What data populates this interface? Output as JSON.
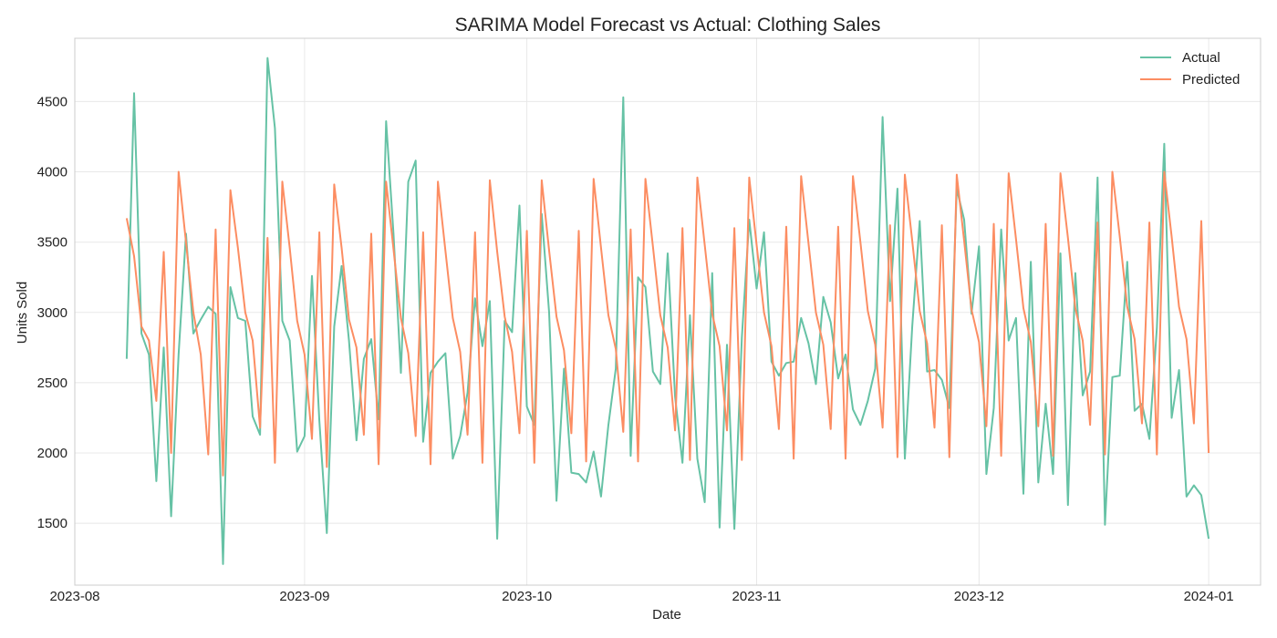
{
  "chart_data": {
    "type": "line",
    "title": "SARIMA Model Forecast vs Actual: Clothing Sales",
    "xlabel": "Date",
    "ylabel": "Units Sold",
    "x_type": "date",
    "xlim": [
      "2023-08-01",
      "2024-01-08"
    ],
    "ylim": [
      1060,
      4950
    ],
    "x_ticks": [
      "2023-08-01",
      "2023-09-01",
      "2023-10-01",
      "2023-11-01",
      "2023-12-01",
      "2024-01-01"
    ],
    "x_tick_labels": [
      "2023-08",
      "2023-09",
      "2023-10",
      "2023-11",
      "2023-12",
      "2024-01"
    ],
    "y_ticks": [
      1500,
      2000,
      2500,
      3000,
      3500,
      4000,
      4500
    ],
    "y_tick_labels": [
      "1500",
      "2000",
      "2500",
      "3000",
      "3500",
      "4000",
      "4500"
    ],
    "grid": true,
    "legend_position": "top-right",
    "x": [
      "2023-08-08",
      "2023-08-09",
      "2023-08-10",
      "2023-08-11",
      "2023-08-12",
      "2023-08-13",
      "2023-08-14",
      "2023-08-15",
      "2023-08-16",
      "2023-08-17",
      "2023-08-18",
      "2023-08-19",
      "2023-08-20",
      "2023-08-21",
      "2023-08-22",
      "2023-08-23",
      "2023-08-24",
      "2023-08-25",
      "2023-08-26",
      "2023-08-27",
      "2023-08-28",
      "2023-08-29",
      "2023-08-30",
      "2023-08-31",
      "2023-09-01",
      "2023-09-02",
      "2023-09-03",
      "2023-09-04",
      "2023-09-05",
      "2023-09-06",
      "2023-09-07",
      "2023-09-08",
      "2023-09-09",
      "2023-09-10",
      "2023-09-11",
      "2023-09-12",
      "2023-09-13",
      "2023-09-14",
      "2023-09-15",
      "2023-09-16",
      "2023-09-17",
      "2023-09-18",
      "2023-09-19",
      "2023-09-20",
      "2023-09-21",
      "2023-09-22",
      "2023-09-23",
      "2023-09-24",
      "2023-09-25",
      "2023-09-26",
      "2023-09-27",
      "2023-09-28",
      "2023-09-29",
      "2023-09-30",
      "2023-10-01",
      "2023-10-02",
      "2023-10-03",
      "2023-10-04",
      "2023-10-05",
      "2023-10-06",
      "2023-10-07",
      "2023-10-08",
      "2023-10-09",
      "2023-10-10",
      "2023-10-11",
      "2023-10-12",
      "2023-10-13",
      "2023-10-14",
      "2023-10-15",
      "2023-10-16",
      "2023-10-17",
      "2023-10-18",
      "2023-10-19",
      "2023-10-20",
      "2023-10-21",
      "2023-10-22",
      "2023-10-23",
      "2023-10-24",
      "2023-10-25",
      "2023-10-26",
      "2023-10-27",
      "2023-10-28",
      "2023-10-29",
      "2023-10-30",
      "2023-10-31",
      "2023-11-01",
      "2023-11-02",
      "2023-11-03",
      "2023-11-04",
      "2023-11-05",
      "2023-11-06",
      "2023-11-07",
      "2023-11-08",
      "2023-11-09",
      "2023-11-10",
      "2023-11-11",
      "2023-11-12",
      "2023-11-13",
      "2023-11-14",
      "2023-11-15",
      "2023-11-16",
      "2023-11-17",
      "2023-11-18",
      "2023-11-19",
      "2023-11-20",
      "2023-11-21",
      "2023-11-22",
      "2023-11-23",
      "2023-11-24",
      "2023-11-25",
      "2023-11-26",
      "2023-11-27",
      "2023-11-28",
      "2023-11-29",
      "2023-11-30",
      "2023-12-01",
      "2023-12-02",
      "2023-12-03",
      "2023-12-04",
      "2023-12-05",
      "2023-12-06",
      "2023-12-07",
      "2023-12-08",
      "2023-12-09",
      "2023-12-10",
      "2023-12-11",
      "2023-12-12",
      "2023-12-13",
      "2023-12-14",
      "2023-12-15",
      "2023-12-16",
      "2023-12-17",
      "2023-12-18",
      "2023-12-19",
      "2023-12-20",
      "2023-12-21",
      "2023-12-22",
      "2023-12-23",
      "2023-12-24",
      "2023-12-25",
      "2023-12-26",
      "2023-12-27",
      "2023-12-28",
      "2023-12-29",
      "2023-12-30",
      "2023-12-31",
      "2024-01-01"
    ],
    "series": [
      {
        "name": "Actual",
        "color": "#66c2a5",
        "values": [
          2670,
          4560,
          2850,
          2700,
          1800,
          2750,
          1550,
          2700,
          3560,
          2850,
          2950,
          3040,
          2990,
          1210,
          3180,
          2960,
          2940,
          2260,
          2130,
          4810,
          4310,
          2940,
          2800,
          2010,
          2120,
          3260,
          2230,
          1430,
          2900,
          3330,
          2800,
          2090,
          2670,
          2810,
          2240,
          4360,
          3560,
          2570,
          3930,
          4080,
          2080,
          2570,
          2650,
          2710,
          1960,
          2120,
          2430,
          3100,
          2760,
          3080,
          1390,
          2940,
          2860,
          3760,
          2330,
          2200,
          3700,
          3000,
          1660,
          2600,
          1860,
          1850,
          1790,
          2010,
          1690,
          2200,
          2600,
          4530,
          1980,
          3250,
          3180,
          2580,
          2490,
          3420,
          2400,
          1930,
          2980,
          1960,
          1650,
          3280,
          1470,
          2770,
          1460,
          2820,
          3660,
          3170,
          3570,
          2650,
          2550,
          2640,
          2650,
          2960,
          2780,
          2490,
          3110,
          2930,
          2530,
          2700,
          2310,
          2200,
          2370,
          2600,
          4390,
          3080,
          3880,
          1960,
          2900,
          3650,
          2580,
          2590,
          2520,
          2320,
          3880,
          3660,
          2990,
          3470,
          1850,
          2320,
          3590,
          2800,
          2960,
          1710,
          3360,
          1790,
          2350,
          1850,
          3420,
          1630,
          3280,
          2410,
          2580,
          3960,
          1490,
          2540,
          2550,
          3360,
          2300,
          2350,
          2100,
          2890,
          4200,
          2250,
          2590,
          1690,
          1770,
          1700,
          1390
        ]
      },
      {
        "name": "Predicted",
        "color": "#fc8d62",
        "values": [
          3670,
          3400,
          2900,
          2800,
          2370,
          3430,
          2000,
          4000,
          3500,
          3000,
          2700,
          1990,
          3590,
          1840,
          3870,
          3460,
          3000,
          2800,
          2180,
          3530,
          1930,
          3930,
          3460,
          2940,
          2700,
          2100,
          3570,
          1900,
          3910,
          3460,
          2950,
          2750,
          2130,
          3560,
          1920,
          3930,
          3450,
          2960,
          2710,
          2120,
          3570,
          1920,
          3930,
          3440,
          2960,
          2720,
          2130,
          3570,
          1930,
          3940,
          3430,
          2970,
          2720,
          2140,
          3580,
          1930,
          3940,
          3440,
          2970,
          2730,
          2140,
          3580,
          1940,
          3950,
          3460,
          2980,
          2740,
          2150,
          3590,
          1940,
          3950,
          3470,
          2980,
          2750,
          2160,
          3600,
          1950,
          3960,
          3480,
          2990,
          2760,
          2160,
          3600,
          1950,
          3960,
          3480,
          3000,
          2760,
          2170,
          3610,
          1960,
          3970,
          3490,
          3000,
          2770,
          2170,
          3610,
          1960,
          3970,
          3500,
          3010,
          2770,
          2180,
          3620,
          1970,
          3980,
          3510,
          3010,
          2780,
          2180,
          3620,
          1970,
          3980,
          3510,
          3020,
          2790,
          2190,
          3630,
          1980,
          3990,
          3520,
          3030,
          2790,
          2190,
          3630,
          1980,
          3990,
          3530,
          3030,
          2800,
          2200,
          3640,
          1990,
          4000,
          3540,
          3040,
          2810,
          2210,
          3640,
          1990,
          4000,
          3540,
          3040,
          2810,
          2210,
          3650,
          2000
        ]
      }
    ]
  }
}
